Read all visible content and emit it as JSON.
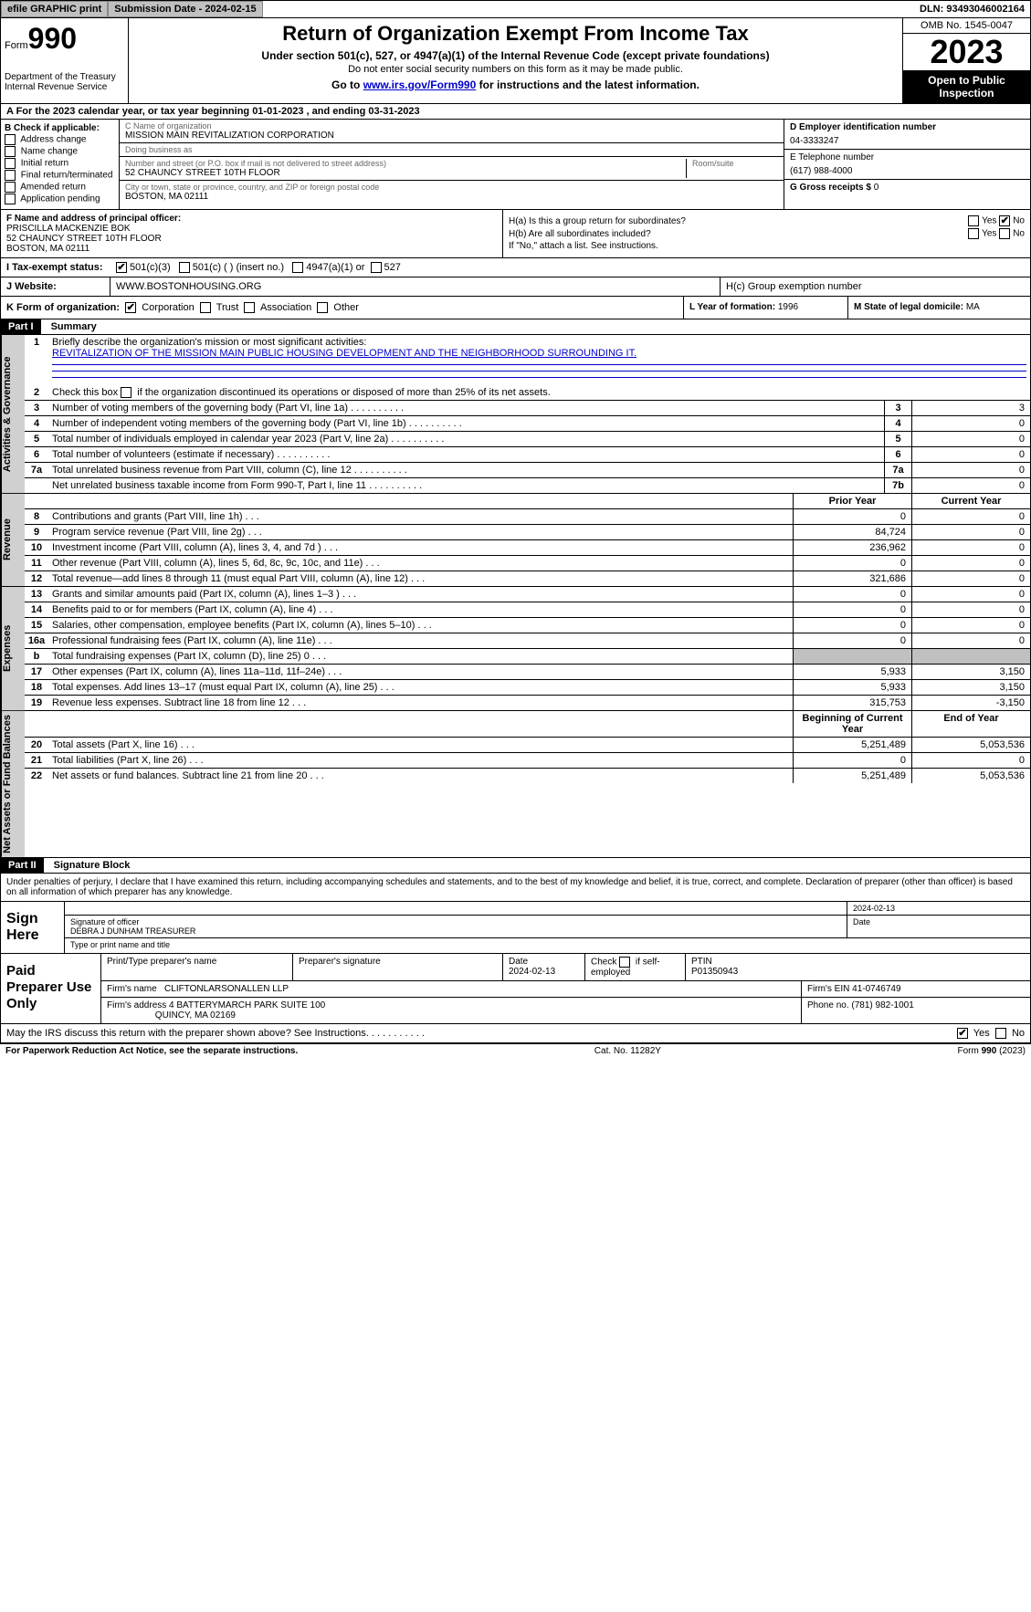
{
  "topbar": {
    "efile": "efile GRAPHIC print",
    "submission": "Submission Date - 2024-02-15",
    "dln": "DLN: 93493046002164"
  },
  "header": {
    "form_word": "Form",
    "form_no": "990",
    "dept": "Department of the Treasury\nInternal Revenue Service",
    "title": "Return of Organization Exempt From Income Tax",
    "sub1": "Under section 501(c), 527, or 4947(a)(1) of the Internal Revenue Code (except private foundations)",
    "sub2": "Do not enter social security numbers on this form as it may be made public.",
    "sub3_pre": "Go to ",
    "sub3_link": "www.irs.gov/Form990",
    "sub3_post": " for instructions and the latest information.",
    "omb": "OMB No. 1545-0047",
    "year": "2023",
    "open": "Open to Public Inspection"
  },
  "line_a": "A For the 2023 calendar year, or tax year beginning 01-01-2023   , and ending 03-31-2023",
  "section_b": {
    "label": "B Check if applicable:",
    "opts": [
      "Address change",
      "Name change",
      "Initial return",
      "Final return/terminated",
      "Amended return",
      "Application pending"
    ]
  },
  "section_c": {
    "name_lbl": "C Name of organization",
    "name": "MISSION MAIN REVITALIZATION CORPORATION",
    "dba_lbl": "Doing business as",
    "dba": "",
    "street_lbl": "Number and street (or P.O. box if mail is not delivered to street address)",
    "street": "52 CHAUNCY STREET 10TH FLOOR",
    "room_lbl": "Room/suite",
    "city_lbl": "City or town, state or province, country, and ZIP or foreign postal code",
    "city": "BOSTON, MA  02111"
  },
  "section_d": {
    "ein_lbl": "D Employer identification number",
    "ein": "04-3333247",
    "tel_lbl": "E Telephone number",
    "tel": "(617) 988-4000",
    "gross_lbl": "G Gross receipts $",
    "gross": "0"
  },
  "officer": {
    "lbl": "F  Name and address of principal officer:",
    "name": "PRISCILLA MACKENZIE BOK",
    "street": "52 CHAUNCY STREET 10TH FLOOR",
    "city": "BOSTON, MA  02111"
  },
  "h": {
    "ha": "H(a)  Is this a group return for subordinates?",
    "hb": "H(b)  Are all subordinates included?",
    "hb_note": "If \"No,\" attach a list. See instructions.",
    "hc": "H(c)  Group exemption number",
    "yes": "Yes",
    "no": "No"
  },
  "status": {
    "lbl": "I  Tax-exempt status:",
    "o1": "501(c)(3)",
    "o2": "501(c) (  ) (insert no.)",
    "o3": "4947(a)(1) or",
    "o4": "527"
  },
  "website": {
    "lbl": "J  Website:",
    "val": "WWW.BOSTONHOUSING.ORG"
  },
  "k": {
    "lbl": "K Form of organization:",
    "o1": "Corporation",
    "o2": "Trust",
    "o3": "Association",
    "o4": "Other"
  },
  "l": {
    "lbl": "L Year of formation:",
    "val": "1996"
  },
  "m": {
    "lbl": "M State of legal domicile:",
    "val": "MA"
  },
  "part1": {
    "tag": "Part I",
    "title": "Summary"
  },
  "summary": {
    "q1": "Briefly describe the organization's mission or most significant activities:",
    "mission": "REVITALIZATION OF THE MISSION MAIN PUBLIC HOUSING DEVELOPMENT AND THE NEIGHBORHOOD SURROUNDING IT.",
    "q2": "Check this box         if the organization discontinued its operations or disposed of more than 25% of its net assets.",
    "lines_gov": [
      {
        "n": "3",
        "d": "Number of voting members of the governing body (Part VI, line 1a)",
        "box": "3",
        "v": "3"
      },
      {
        "n": "4",
        "d": "Number of independent voting members of the governing body (Part VI, line 1b)",
        "box": "4",
        "v": "0"
      },
      {
        "n": "5",
        "d": "Total number of individuals employed in calendar year 2023 (Part V, line 2a)",
        "box": "5",
        "v": "0"
      },
      {
        "n": "6",
        "d": "Total number of volunteers (estimate if necessary)",
        "box": "6",
        "v": "0"
      },
      {
        "n": "7a",
        "d": "Total unrelated business revenue from Part VIII, column (C), line 12",
        "box": "7a",
        "v": "0"
      },
      {
        "n": "",
        "d": "Net unrelated business taxable income from Form 990-T, Part I, line 11",
        "box": "7b",
        "v": "0"
      }
    ],
    "prior": "Prior Year",
    "current": "Current Year",
    "lines_rev": [
      {
        "n": "8",
        "d": "Contributions and grants (Part VIII, line 1h)",
        "p": "0",
        "c": "0"
      },
      {
        "n": "9",
        "d": "Program service revenue (Part VIII, line 2g)",
        "p": "84,724",
        "c": "0"
      },
      {
        "n": "10",
        "d": "Investment income (Part VIII, column (A), lines 3, 4, and 7d )",
        "p": "236,962",
        "c": "0"
      },
      {
        "n": "11",
        "d": "Other revenue (Part VIII, column (A), lines 5, 6d, 8c, 9c, 10c, and 11e)",
        "p": "0",
        "c": "0"
      },
      {
        "n": "12",
        "d": "Total revenue—add lines 8 through 11 (must equal Part VIII, column (A), line 12)",
        "p": "321,686",
        "c": "0"
      }
    ],
    "lines_exp": [
      {
        "n": "13",
        "d": "Grants and similar amounts paid (Part IX, column (A), lines 1–3 )",
        "p": "0",
        "c": "0"
      },
      {
        "n": "14",
        "d": "Benefits paid to or for members (Part IX, column (A), line 4)",
        "p": "0",
        "c": "0"
      },
      {
        "n": "15",
        "d": "Salaries, other compensation, employee benefits (Part IX, column (A), lines 5–10)",
        "p": "0",
        "c": "0"
      },
      {
        "n": "16a",
        "d": "Professional fundraising fees (Part IX, column (A), line 11e)",
        "p": "0",
        "c": "0"
      },
      {
        "n": "b",
        "d": "Total fundraising expenses (Part IX, column (D), line 25) 0",
        "p": "SHADE",
        "c": "SHADE"
      },
      {
        "n": "17",
        "d": "Other expenses (Part IX, column (A), lines 11a–11d, 11f–24e)",
        "p": "5,933",
        "c": "3,150"
      },
      {
        "n": "18",
        "d": "Total expenses. Add lines 13–17 (must equal Part IX, column (A), line 25)",
        "p": "5,933",
        "c": "3,150"
      },
      {
        "n": "19",
        "d": "Revenue less expenses. Subtract line 18 from line 12",
        "p": "315,753",
        "c": "-3,150"
      }
    ],
    "begin": "Beginning of Current Year",
    "end": "End of Year",
    "lines_net": [
      {
        "n": "20",
        "d": "Total assets (Part X, line 16)",
        "p": "5,251,489",
        "c": "5,053,536"
      },
      {
        "n": "21",
        "d": "Total liabilities (Part X, line 26)",
        "p": "0",
        "c": "0"
      },
      {
        "n": "22",
        "d": "Net assets or fund balances. Subtract line 21 from line 20",
        "p": "5,251,489",
        "c": "5,053,536"
      }
    ]
  },
  "vtabs": {
    "gov": "Activities & Governance",
    "rev": "Revenue",
    "exp": "Expenses",
    "net": "Net Assets or Fund Balances"
  },
  "part2": {
    "tag": "Part II",
    "title": "Signature Block"
  },
  "sig_text": "Under penalties of perjury, I declare that I have examined this return, including accompanying schedules and statements, and to the best of my knowledge and belief, it is true, correct, and complete. Declaration of preparer (other than officer) is based on all information of which preparer has any knowledge.",
  "sign": {
    "lbl": "Sign Here",
    "date": "2024-02-13",
    "sig_lbl": "Signature of officer",
    "name": "DEBRA J DUNHAM TREASURER",
    "type_lbl": "Type or print name and title",
    "date_lbl": "Date"
  },
  "prep": {
    "lbl": "Paid Preparer Use Only",
    "h1": "Print/Type preparer's name",
    "h2": "Preparer's signature",
    "h3": "Date",
    "date": "2024-02-13",
    "h4_pre": "Check",
    "h4_post": "if self-employed",
    "h5": "PTIN",
    "ptin": "P01350943",
    "firm_lbl": "Firm's name",
    "firm": "CLIFTONLARSONALLEN LLP",
    "ein_lbl": "Firm's EIN",
    "ein": "41-0746749",
    "addr_lbl": "Firm's address",
    "addr1": "4 BATTERYMARCH PARK SUITE 100",
    "addr2": "QUINCY, MA  02169",
    "phone_lbl": "Phone no.",
    "phone": "(781) 982-1001"
  },
  "discuss": {
    "q": "May the IRS discuss this return with the preparer shown above? See Instructions.",
    "yes": "Yes",
    "no": "No"
  },
  "footer": {
    "left": "For Paperwork Reduction Act Notice, see the separate instructions.",
    "mid": "Cat. No. 11282Y",
    "right_pre": "Form ",
    "right_bold": "990",
    "right_post": " (2023)"
  }
}
